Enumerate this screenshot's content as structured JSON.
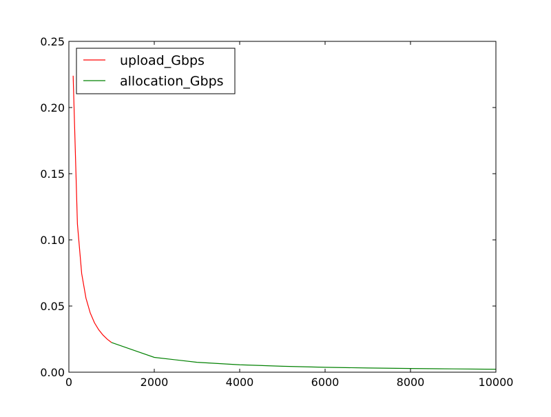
{
  "chart_data": {
    "type": "line",
    "title": "",
    "xlabel": "",
    "ylabel": "",
    "xlim": [
      0,
      10000
    ],
    "ylim": [
      0,
      0.25
    ],
    "xticks": [
      0,
      2000,
      4000,
      6000,
      8000,
      10000
    ],
    "xtick_labels": [
      "0",
      "2000",
      "4000",
      "6000",
      "8000",
      "10000"
    ],
    "yticks": [
      0,
      0.05,
      0.1,
      0.15,
      0.2,
      0.25
    ],
    "ytick_labels": [
      "0.00",
      "0.05",
      "0.10",
      "0.15",
      "0.20",
      "0.25"
    ],
    "grid": false,
    "legend": "top-left",
    "series": [
      {
        "name": "upload_Gbps",
        "color": "#ff0000",
        "x": [
          100,
          200,
          300,
          400,
          500,
          600,
          700,
          800,
          900,
          1000
        ],
        "y": [
          0.224,
          0.112,
          0.0745,
          0.056,
          0.0448,
          0.0373,
          0.032,
          0.028,
          0.0249,
          0.0224
        ]
      },
      {
        "name": "allocation_Gbps",
        "color": "#008000",
        "x": [
          1000,
          2000,
          3000,
          4000,
          5000,
          6000,
          7000,
          8000,
          9000,
          10000
        ],
        "y": [
          0.0224,
          0.0112,
          0.0075,
          0.0056,
          0.0045,
          0.0037,
          0.0032,
          0.0028,
          0.0025,
          0.0022
        ]
      }
    ]
  }
}
